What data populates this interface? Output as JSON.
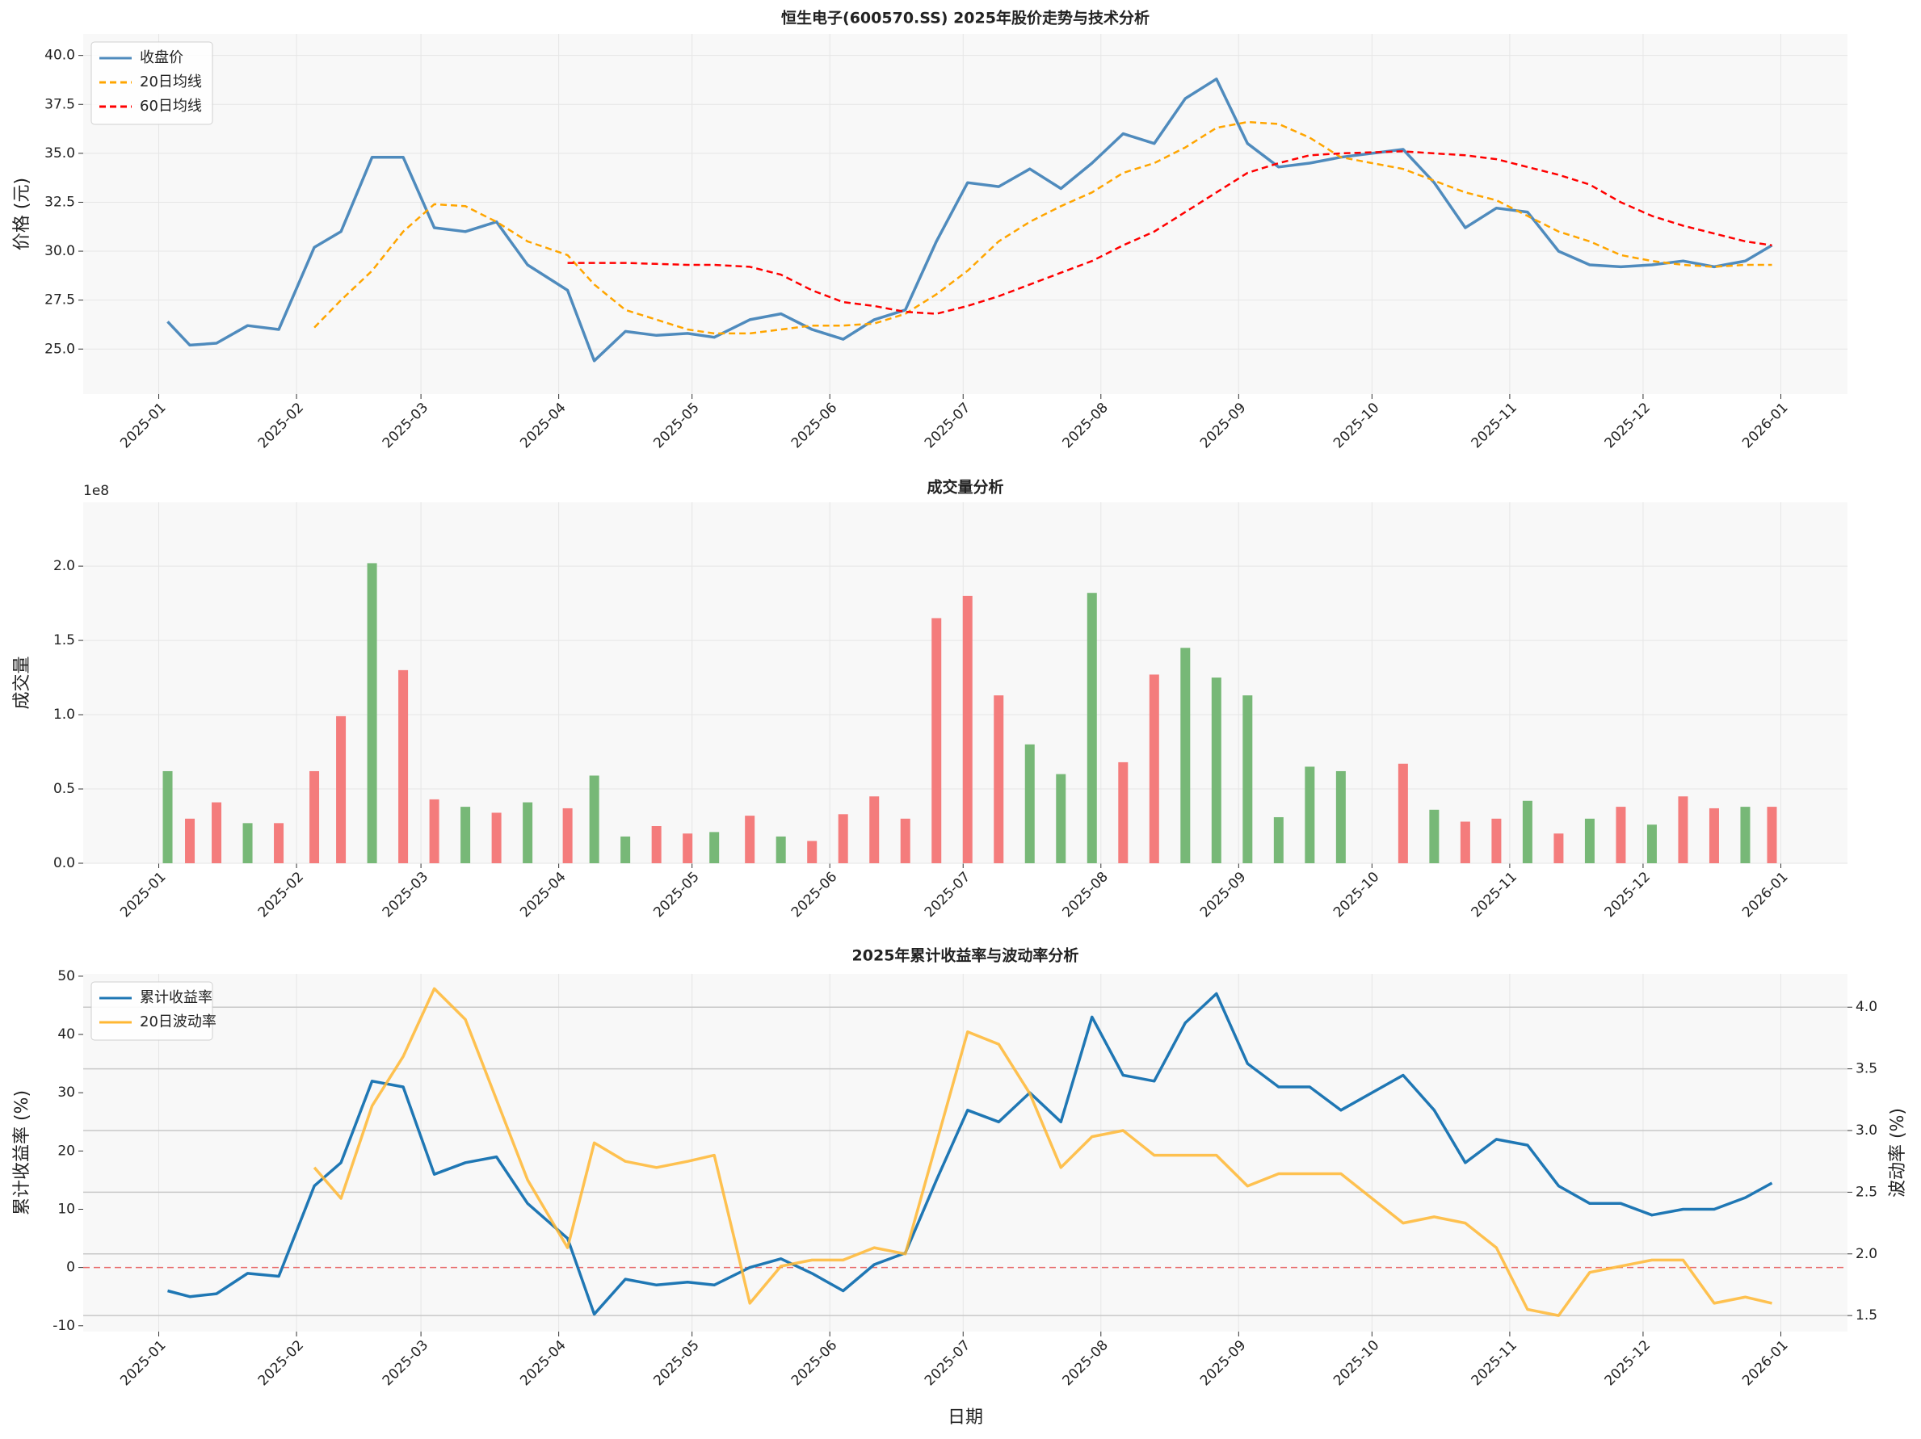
{
  "chart_data": [
    {
      "type": "line",
      "title": "恒生电子(600570.SS) 2025年股价走势与技术分析",
      "ylabel": "价格 (元)",
      "x": [
        2,
        7,
        13,
        20,
        27,
        35,
        41,
        48,
        55,
        62,
        69,
        76,
        83,
        92,
        98,
        105,
        112,
        119,
        125,
        133,
        140,
        147,
        154,
        161,
        168,
        175,
        182,
        189,
        196,
        203,
        210,
        217,
        224,
        231,
        238,
        245,
        252,
        259,
        266,
        280,
        287,
        294,
        301,
        308,
        315,
        322,
        329,
        336,
        343,
        350,
        357,
        363
      ],
      "xlim": [
        -17,
        380
      ],
      "xticks": [
        {
          "value": 0,
          "label": "2025-01"
        },
        {
          "value": 31,
          "label": "2025-02"
        },
        {
          "value": 59,
          "label": "2025-03"
        },
        {
          "value": 90,
          "label": "2025-04"
        },
        {
          "value": 120,
          "label": "2025-05"
        },
        {
          "value": 151,
          "label": "2025-06"
        },
        {
          "value": 181,
          "label": "2025-07"
        },
        {
          "value": 212,
          "label": "2025-08"
        },
        {
          "value": 243,
          "label": "2025-09"
        },
        {
          "value": 273,
          "label": "2025-10"
        },
        {
          "value": 304,
          "label": "2025-11"
        },
        {
          "value": 334,
          "label": "2025-12"
        },
        {
          "value": 365,
          "label": "2026-01"
        }
      ],
      "ylim": [
        22.7,
        41.1
      ],
      "yticks": [
        {
          "value": 25,
          "label": "25.0"
        },
        27.5,
        {
          "value": 30,
          "label": "30.0"
        },
        32.5,
        {
          "value": 35,
          "label": "35.0"
        },
        37.5,
        {
          "value": 40,
          "label": "40.0"
        }
      ],
      "grid": true,
      "legend": "upper left",
      "series": [
        {
          "name": "收盘价",
          "color": "#4f8bbd",
          "linestyle": "solid",
          "values": [
            26.4,
            25.2,
            25.3,
            26.2,
            26.0,
            30.2,
            31.0,
            34.8,
            34.8,
            31.2,
            31.0,
            31.5,
            29.3,
            28.0,
            24.4,
            25.9,
            25.7,
            25.8,
            25.6,
            26.5,
            26.8,
            26.0,
            25.5,
            26.5,
            27.0,
            30.5,
            33.5,
            33.3,
            34.2,
            33.2,
            34.5,
            36.0,
            35.5,
            37.8,
            38.8,
            35.5,
            34.3,
            34.5,
            34.8,
            35.2,
            33.5,
            31.2,
            32.2,
            32.0,
            30.0,
            29.3,
            29.2,
            29.3,
            29.5,
            29.2,
            29.5,
            30.3
          ]
        },
        {
          "name": "20日均线",
          "color": "#ffa500",
          "linestyle": "dashed",
          "values": [
            null,
            null,
            null,
            null,
            null,
            26.1,
            27.5,
            29.0,
            31.0,
            32.4,
            32.3,
            31.5,
            30.5,
            29.8,
            28.3,
            27.0,
            26.5,
            26.0,
            25.8,
            25.8,
            26.0,
            26.2,
            26.2,
            26.3,
            26.8,
            27.8,
            29.0,
            30.5,
            31.5,
            32.3,
            33.0,
            34.0,
            34.5,
            35.3,
            36.3,
            36.6,
            36.5,
            35.8,
            34.8,
            34.2,
            33.6,
            33.0,
            32.6,
            31.8,
            31.0,
            30.5,
            29.8,
            29.5,
            29.3,
            29.2,
            29.3,
            29.3
          ]
        },
        {
          "name": "60日均线",
          "color": "#ff0000",
          "linestyle": "dashed",
          "values": [
            null,
            null,
            null,
            null,
            null,
            null,
            null,
            null,
            null,
            null,
            null,
            null,
            null,
            29.4,
            29.4,
            29.4,
            29.35,
            29.3,
            29.3,
            29.2,
            28.8,
            28.0,
            27.4,
            27.2,
            26.9,
            26.8,
            27.2,
            27.7,
            28.3,
            28.9,
            29.5,
            30.3,
            31.0,
            32.0,
            33.0,
            34.0,
            34.5,
            34.9,
            35.0,
            35.1,
            35.0,
            34.9,
            34.7,
            34.3,
            33.9,
            33.4,
            32.5,
            31.8,
            31.3,
            30.9,
            30.5,
            30.3
          ]
        }
      ]
    },
    {
      "type": "bar",
      "title": "成交量分析",
      "ylabel": "成交量",
      "offset_label": "1e8",
      "x": [
        2,
        7,
        13,
        20,
        27,
        35,
        41,
        48,
        55,
        62,
        69,
        76,
        83,
        92,
        98,
        105,
        112,
        119,
        125,
        133,
        140,
        147,
        154,
        161,
        168,
        175,
        182,
        189,
        196,
        203,
        210,
        217,
        224,
        231,
        238,
        245,
        252,
        259,
        266,
        280,
        287,
        294,
        301,
        308,
        315,
        322,
        329,
        336,
        343,
        350,
        357,
        363
      ],
      "xlim": [
        -17,
        380
      ],
      "xticks": [
        {
          "value": 0,
          "label": "2025-01"
        },
        {
          "value": 31,
          "label": "2025-02"
        },
        {
          "value": 59,
          "label": "2025-03"
        },
        {
          "value": 90,
          "label": "2025-04"
        },
        {
          "value": 120,
          "label": "2025-05"
        },
        {
          "value": 151,
          "label": "2025-06"
        },
        {
          "value": 181,
          "label": "2025-07"
        },
        {
          "value": 212,
          "label": "2025-08"
        },
        {
          "value": 243,
          "label": "2025-09"
        },
        {
          "value": 273,
          "label": "2025-10"
        },
        {
          "value": 304,
          "label": "2025-11"
        },
        {
          "value": 334,
          "label": "2025-12"
        },
        {
          "value": 365,
          "label": "2026-01"
        }
      ],
      "ylim": [
        0,
        2.43
      ],
      "yticks": [
        {
          "value": 0,
          "label": "0.0"
        },
        0.5,
        {
          "value": 1,
          "label": "1.0"
        },
        1.5,
        {
          "value": 2,
          "label": "2.0"
        }
      ],
      "grid": true,
      "values": [
        0.62,
        0.3,
        0.41,
        0.27,
        0.27,
        0.62,
        0.99,
        2.02,
        1.3,
        0.43,
        0.38,
        0.34,
        0.41,
        0.37,
        0.59,
        0.18,
        0.25,
        0.2,
        0.21,
        0.32,
        0.18,
        0.15,
        0.33,
        0.45,
        0.3,
        1.65,
        1.8,
        1.13,
        0.8,
        0.6,
        1.82,
        0.68,
        1.27,
        1.45,
        1.25,
        1.13,
        0.31,
        0.65,
        0.62,
        0.67,
        0.36,
        0.28,
        0.3,
        0.42,
        0.2,
        0.3,
        0.38,
        0.26,
        0.45,
        0.37,
        0.38,
        0.38
      ],
      "colors": [
        "#77b877",
        "#f47c7c",
        "#f47c7c",
        "#77b877",
        "#f47c7c",
        "#f47c7c",
        "#f47c7c",
        "#77b877",
        "#f47c7c",
        "#f47c7c",
        "#77b877",
        "#f47c7c",
        "#77b877",
        "#f47c7c",
        "#77b877",
        "#77b877",
        "#f47c7c",
        "#f47c7c",
        "#77b877",
        "#f47c7c",
        "#77b877",
        "#f47c7c",
        "#f47c7c",
        "#f47c7c",
        "#f47c7c",
        "#f47c7c",
        "#f47c7c",
        "#f47c7c",
        "#77b877",
        "#77b877",
        "#77b877",
        "#f47c7c",
        "#f47c7c",
        "#77b877",
        "#77b877",
        "#77b877",
        "#77b877",
        "#77b877",
        "#77b877",
        "#f47c7c",
        "#77b877",
        "#f47c7c",
        "#f47c7c",
        "#77b877",
        "#f47c7c",
        "#77b877",
        "#f47c7c",
        "#77b877",
        "#f47c7c",
        "#f47c7c",
        "#77b877",
        "#f47c7c"
      ]
    },
    {
      "type": "line",
      "title": "2025年累计收益率与波动率分析",
      "ylabel": "累计收益率 (%)",
      "y2label": "波动率 (%)",
      "xlabel": "日期",
      "x": [
        2,
        7,
        13,
        20,
        27,
        35,
        41,
        48,
        55,
        62,
        69,
        76,
        83,
        92,
        98,
        105,
        112,
        119,
        125,
        133,
        140,
        147,
        154,
        161,
        168,
        175,
        182,
        189,
        196,
        203,
        210,
        217,
        224,
        231,
        238,
        245,
        252,
        259,
        266,
        280,
        287,
        294,
        301,
        308,
        315,
        322,
        329,
        336,
        343,
        350,
        357,
        363
      ],
      "xlim": [
        -17,
        380
      ],
      "xticks": [
        {
          "value": 0,
          "label": "2025-01"
        },
        {
          "value": 31,
          "label": "2025-02"
        },
        {
          "value": 59,
          "label": "2025-03"
        },
        {
          "value": 90,
          "label": "2025-04"
        },
        {
          "value": 120,
          "label": "2025-05"
        },
        {
          "value": 151,
          "label": "2025-06"
        },
        {
          "value": 181,
          "label": "2025-07"
        },
        {
          "value": 212,
          "label": "2025-08"
        },
        {
          "value": 243,
          "label": "2025-09"
        },
        {
          "value": 273,
          "label": "2025-10"
        },
        {
          "value": 304,
          "label": "2025-11"
        },
        {
          "value": 334,
          "label": "2025-12"
        },
        {
          "value": 365,
          "label": "2026-01"
        }
      ],
      "ylim": [
        -11,
        50.4
      ],
      "yticks": [
        -10,
        0,
        10,
        20,
        30,
        40,
        50
      ],
      "y2lim": [
        1.37,
        4.27
      ],
      "y2ticks": [
        1.5,
        {
          "value": 2,
          "label": "2.0"
        },
        2.5,
        {
          "value": 3,
          "label": "3.0"
        },
        3.5,
        {
          "value": 4,
          "label": "4.0"
        }
      ],
      "grid": true,
      "legend": "upper left",
      "reference_line": {
        "value": 0,
        "color": "#e86a6a",
        "linestyle": "dashed"
      },
      "series": [
        {
          "name": "累计收益率",
          "color": "#1f77b4",
          "linestyle": "solid",
          "values": [
            -4,
            -5,
            -4.5,
            -1,
            -1.5,
            14,
            18,
            32,
            31,
            16,
            18,
            19,
            11,
            5,
            -8,
            -2,
            -3,
            -2.5,
            -3,
            0,
            1.5,
            -1,
            -4,
            0.5,
            2.5,
            15,
            27,
            25,
            30,
            25,
            43,
            33,
            32,
            42,
            47,
            35,
            31,
            31,
            27,
            33,
            27,
            18,
            22,
            21,
            14,
            11,
            11,
            9,
            10,
            10,
            12,
            14.5
          ]
        },
        {
          "name": "20日波动率",
          "color": "#ffb732",
          "linestyle": "solid",
          "axis": "y2",
          "values": [
            null,
            null,
            null,
            null,
            null,
            2.7,
            2.45,
            3.2,
            3.6,
            4.15,
            3.9,
            3.25,
            2.6,
            2.05,
            2.9,
            2.75,
            2.7,
            2.75,
            2.8,
            1.6,
            1.9,
            1.95,
            1.95,
            2.05,
            2.0,
            2.9,
            3.8,
            3.7,
            3.3,
            2.7,
            2.95,
            3.0,
            2.8,
            2.8,
            2.8,
            2.55,
            2.65,
            2.65,
            2.65,
            2.25,
            2.3,
            2.25,
            2.05,
            1.55,
            1.5,
            1.85,
            1.9,
            1.95,
            1.95,
            1.6,
            1.65,
            1.6
          ]
        }
      ]
    }
  ]
}
